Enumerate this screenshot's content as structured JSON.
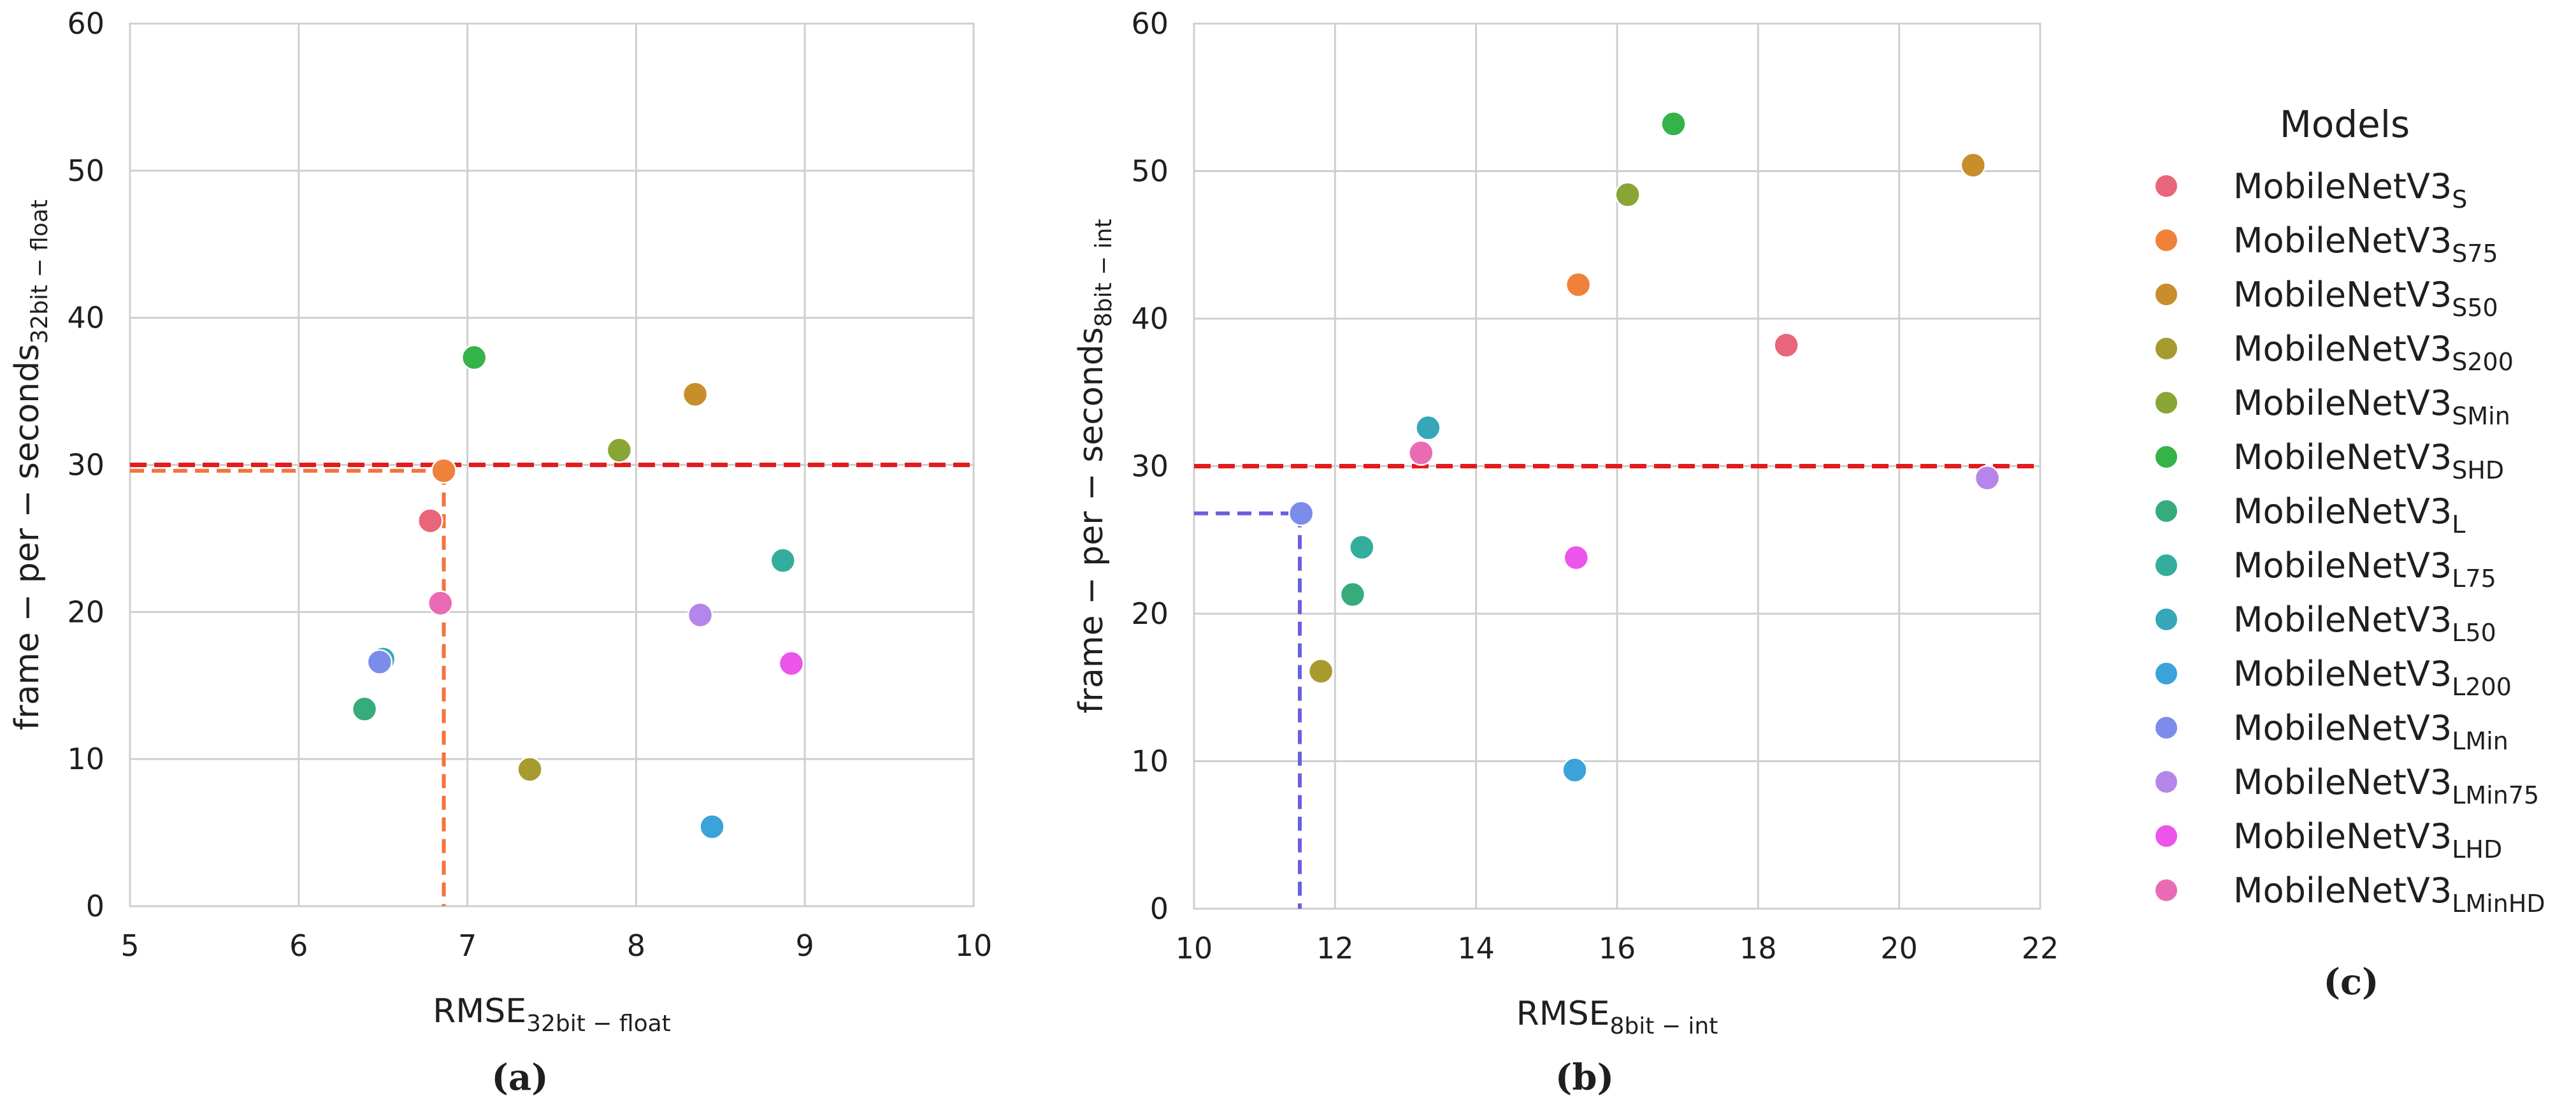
{
  "chart_data": [
    {
      "id": "a",
      "type": "scatter",
      "panel_label": "a",
      "xlabel": "RMSE",
      "xlabel_sub": "32bit − float",
      "ylabel": "frame − per − seconds",
      "ylabel_sub": "32bit − float",
      "xlim": [
        5,
        10
      ],
      "ylim": [
        0,
        60
      ],
      "xticks": [
        "5",
        "6",
        "7",
        "8",
        "9",
        "10"
      ],
      "yticks": [
        "0",
        "10",
        "20",
        "30",
        "40",
        "50",
        "60"
      ],
      "hline": {
        "y": 30,
        "color": "#e41a1c"
      },
      "guide": {
        "x": 6.86,
        "y": 29.6,
        "color": "#f4733a"
      },
      "points": [
        {
          "model": "S",
          "x": 6.78,
          "y": 26.2
        },
        {
          "model": "S75",
          "x": 6.86,
          "y": 29.6
        },
        {
          "model": "S50",
          "x": 8.35,
          "y": 34.8
        },
        {
          "model": "S200",
          "x": 7.37,
          "y": 9.3
        },
        {
          "model": "SMin",
          "x": 7.9,
          "y": 31.0
        },
        {
          "model": "SHD",
          "x": 7.04,
          "y": 37.3
        },
        {
          "model": "L",
          "x": 6.39,
          "y": 13.4
        },
        {
          "model": "L75",
          "x": 8.87,
          "y": 23.5
        },
        {
          "model": "L50",
          "x": 6.5,
          "y": 16.8
        },
        {
          "model": "L200",
          "x": 8.45,
          "y": 5.4
        },
        {
          "model": "LMin",
          "x": 6.48,
          "y": 16.6
        },
        {
          "model": "LMin75",
          "x": 8.38,
          "y": 19.8
        },
        {
          "model": "LHD",
          "x": 8.92,
          "y": 16.5
        },
        {
          "model": "LMinHD",
          "x": 6.84,
          "y": 20.6
        }
      ]
    },
    {
      "id": "b",
      "type": "scatter",
      "panel_label": "b",
      "xlabel": "RMSE",
      "xlabel_sub": "8bit − int",
      "ylabel": "frame − per − seconds",
      "ylabel_sub": "8bit − int",
      "xlim": [
        10,
        22
      ],
      "ylim": [
        0,
        60
      ],
      "xticks": [
        "10",
        "12",
        "14",
        "16",
        "18",
        "20",
        "22"
      ],
      "yticks": [
        "0",
        "10",
        "20",
        "30",
        "40",
        "50",
        "60"
      ],
      "hline": {
        "y": 30,
        "color": "#e41a1c"
      },
      "guide": {
        "x": 11.5,
        "y": 26.8,
        "color": "#6a5fdc"
      },
      "points": [
        {
          "model": "S",
          "x": 18.4,
          "y": 38.2
        },
        {
          "model": "S75",
          "x": 15.45,
          "y": 42.3
        },
        {
          "model": "S50",
          "x": 21.05,
          "y": 50.4
        },
        {
          "model": "S200",
          "x": 11.8,
          "y": 16.1
        },
        {
          "model": "SMin",
          "x": 16.15,
          "y": 48.4
        },
        {
          "model": "SHD",
          "x": 16.8,
          "y": 53.2
        },
        {
          "model": "L",
          "x": 12.25,
          "y": 21.3
        },
        {
          "model": "L75",
          "x": 12.38,
          "y": 24.5
        },
        {
          "model": "L50",
          "x": 13.32,
          "y": 32.6
        },
        {
          "model": "L200",
          "x": 15.4,
          "y": 9.4
        },
        {
          "model": "LMin",
          "x": 11.52,
          "y": 26.8
        },
        {
          "model": "LMin75",
          "x": 21.25,
          "y": 29.2
        },
        {
          "model": "LHD",
          "x": 15.42,
          "y": 23.8
        },
        {
          "model": "LMinHD",
          "x": 13.22,
          "y": 30.9
        }
      ]
    }
  ],
  "legend": {
    "title": "Models",
    "panel_label": "c",
    "base_name": "MobileNetV3",
    "items": [
      {
        "sub": "S",
        "color": "#e8657a"
      },
      {
        "sub": "S75",
        "color": "#f0813a"
      },
      {
        "sub": "S50",
        "color": "#c78e2c"
      },
      {
        "sub": "S200",
        "color": "#a79a2e"
      },
      {
        "sub": "SMin",
        "color": "#87a636"
      },
      {
        "sub": "SHD",
        "color": "#34b349"
      },
      {
        "sub": "L",
        "color": "#36ac7c"
      },
      {
        "sub": "L75",
        "color": "#34ad9c"
      },
      {
        "sub": "L50",
        "color": "#35a7b9"
      },
      {
        "sub": "L200",
        "color": "#3aa3d9"
      },
      {
        "sub": "LMin",
        "color": "#7b8cea"
      },
      {
        "sub": "LMin75",
        "color": "#b685e9"
      },
      {
        "sub": "LHD",
        "color": "#eb55ea"
      },
      {
        "sub": "LMinHD",
        "color": "#ea6bb4"
      }
    ]
  }
}
